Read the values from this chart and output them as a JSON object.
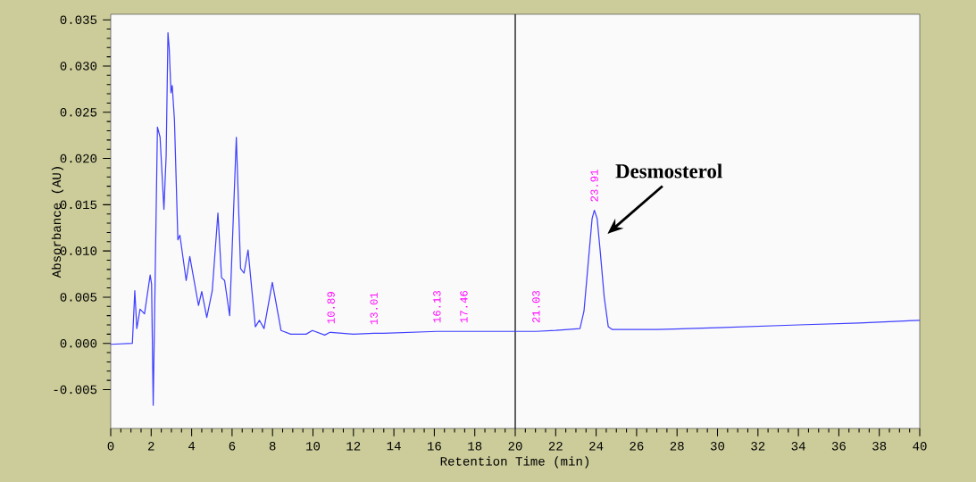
{
  "chart_data": {
    "type": "line",
    "xlabel": "Retention Time (min)",
    "ylabel": "Absorbance (AU)",
    "x": [
      0,
      1.07,
      1.19,
      1.29,
      1.45,
      1.67,
      1.95,
      2.02,
      2.1,
      2.16,
      2.31,
      2.44,
      2.63,
      2.74,
      2.83,
      2.89,
      2.98,
      3.04,
      3.15,
      3.32,
      3.42,
      3.73,
      3.91,
      4.34,
      4.5,
      4.75,
      5.02,
      5.3,
      5.48,
      5.63,
      5.88,
      6.21,
      6.42,
      6.59,
      6.79,
      7.15,
      7.35,
      7.58,
      7.99,
      8.42,
      8.9,
      9.66,
      9.97,
      10.58,
      10.84,
      10.89,
      12,
      13.01,
      13.5,
      16.13,
      17.46,
      20,
      21.03,
      22,
      23.2,
      23.4,
      23.6,
      23.8,
      23.91,
      24.05,
      24.2,
      24.4,
      24.6,
      24.8,
      27,
      30,
      34,
      37,
      40
    ],
    "values": [
      -0.0001,
      0.0,
      0.0057,
      0.0016,
      0.0037,
      0.0032,
      0.0074,
      0.0064,
      -0.0067,
      0.0018,
      0.0234,
      0.0223,
      0.0145,
      0.0203,
      0.0336,
      0.032,
      0.0271,
      0.0279,
      0.0242,
      0.0112,
      0.0117,
      0.0068,
      0.0094,
      0.0041,
      0.0056,
      0.0028,
      0.0057,
      0.0141,
      0.0071,
      0.0068,
      0.003,
      0.0223,
      0.0081,
      0.0076,
      0.0101,
      0.0018,
      0.0025,
      0.0016,
      0.0066,
      0.0014,
      0.001,
      0.001,
      0.0014,
      0.0009,
      0.0012,
      0.0012,
      0.001,
      0.0011,
      0.0011,
      0.0013,
      0.0013,
      0.0013,
      0.0013,
      0.0014,
      0.0016,
      0.0035,
      0.0085,
      0.0135,
      0.0144,
      0.0135,
      0.01,
      0.005,
      0.0018,
      0.0015,
      0.0015,
      0.0017,
      0.002,
      0.0022,
      0.0025
    ],
    "color": "#3f3fff",
    "xlim": [
      0,
      40
    ],
    "ylim": [
      -0.0092,
      0.0356
    ],
    "xticks": [
      0,
      2,
      4,
      6,
      8,
      10,
      12,
      14,
      16,
      18,
      20,
      22,
      24,
      26,
      28,
      30,
      32,
      34,
      36,
      38,
      40
    ],
    "yticks": [
      {
        "value": -0.005,
        "label": "-0.005"
      },
      {
        "value": 0,
        "label": "0.000"
      },
      {
        "value": 0.005,
        "label": "0.005"
      },
      {
        "value": 0.01,
        "label": "0.010"
      },
      {
        "value": 0.015,
        "label": "0.015"
      },
      {
        "value": 0.02,
        "label": "0.020"
      },
      {
        "value": 0.025,
        "label": "0.025"
      },
      {
        "value": 0.03,
        "label": "0.030"
      },
      {
        "value": 0.035,
        "label": "0.035"
      }
    ],
    "ref_lines": [
      {
        "axis": "x",
        "value": 20,
        "color": "#000000"
      }
    ],
    "annotations": [
      "Desmosterol",
      {
        "text": "10.89",
        "x": 10.89,
        "y": 0.0012
      },
      {
        "text": "13.01",
        "x": 13.01,
        "y": 0.0011
      },
      {
        "text": "16.13",
        "x": 16.13,
        "y": 0.0013
      },
      {
        "text": "17.46",
        "x": 17.46,
        "y": 0.0013
      },
      {
        "text": "21.03",
        "x": 21.03,
        "y": 0.0013
      },
      {
        "text": "23.91",
        "x": 23.91,
        "y": 0.0144
      }
    ]
  }
}
